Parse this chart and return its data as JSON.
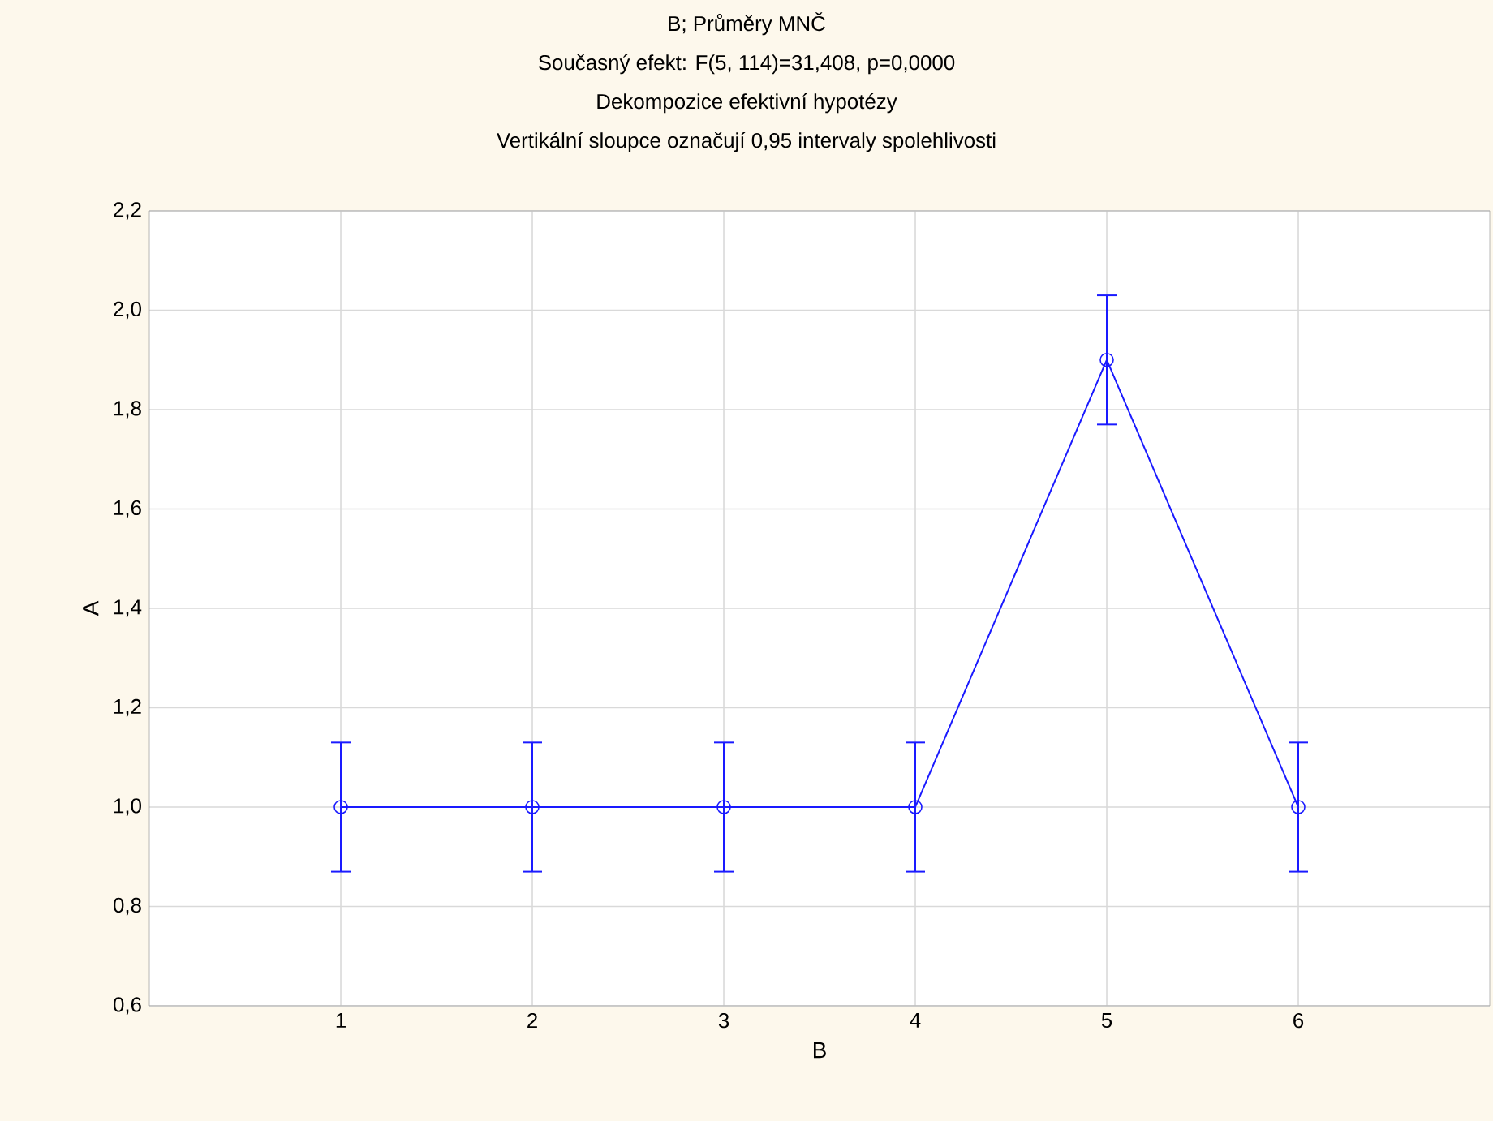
{
  "chart_data": {
    "type": "line",
    "title": "B; Průměry MNČ",
    "subtitle": "Současný efekt: F(5, 114)=31,408, p=0,0000",
    "annotations": [
      "Dekompozice efektivní hypotézy",
      "Vertikální sloupce označují 0,95 intervaly spolehlivosti"
    ],
    "xlabel": "B",
    "ylabel": "A",
    "x": [
      1,
      2,
      3,
      4,
      5,
      6
    ],
    "values": [
      1.0,
      1.0,
      1.0,
      1.0,
      1.9,
      1.0
    ],
    "errors": [
      0.13,
      0.13,
      0.13,
      0.13,
      0.13,
      0.13
    ],
    "color": "#1a1aff",
    "marker": "circle",
    "line_style": "solid",
    "grid": true,
    "xlim": [
      0,
      7
    ],
    "xticks": [
      1,
      2,
      3,
      4,
      5,
      6
    ],
    "ylim": [
      0.6,
      2.2
    ],
    "yticks": [
      {
        "value": 0.6,
        "label": "0,6"
      },
      {
        "value": 0.8,
        "label": "0,8"
      },
      {
        "value": 1.0,
        "label": "1,0"
      },
      {
        "value": 1.2,
        "label": "1,2"
      },
      {
        "value": 1.4,
        "label": "1,4"
      },
      {
        "value": 1.6,
        "label": "1,6"
      },
      {
        "value": 1.8,
        "label": "1,8"
      },
      {
        "value": 2.0,
        "label": "2,0"
      },
      {
        "value": 2.2,
        "label": "2,2"
      }
    ]
  }
}
